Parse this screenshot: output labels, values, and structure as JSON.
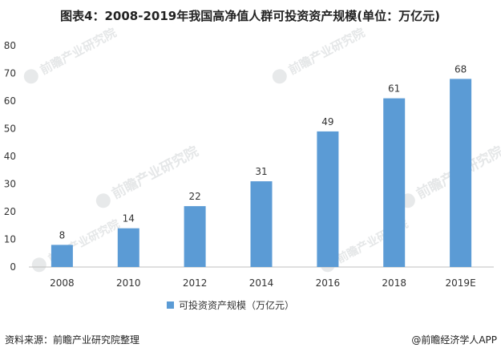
{
  "title": "图表4：2008-2019年我国高净值人群可投资资产规模(单位：万亿元)",
  "source": "资料来源：前瞻产业研究院整理",
  "brand": "@前瞻经济学人APP",
  "watermark": "前瞻产业研究院",
  "colors": {
    "bar": "#5b9bd5",
    "axis": "#bfbfbf",
    "text": "#333333",
    "title": "#222222"
  },
  "chart_data": {
    "type": "bar",
    "title": "图表4：2008-2019年我国高净值人群可投资资产规模(单位：万亿元)",
    "xlabel": "",
    "ylabel": "",
    "categories": [
      "2008",
      "2010",
      "2012",
      "2014",
      "2016",
      "2018",
      "2019E"
    ],
    "series": [
      {
        "name": "可投资资产规模（万亿元）",
        "values": [
          8,
          14,
          22,
          31,
          49,
          61,
          68
        ],
        "color": "#5b9bd5"
      }
    ],
    "ylim": [
      0,
      80
    ],
    "yticks": [
      0,
      10,
      20,
      30,
      40,
      50,
      60,
      70,
      80
    ],
    "grid": false,
    "legend_position": "bottom",
    "data_labels": true
  }
}
